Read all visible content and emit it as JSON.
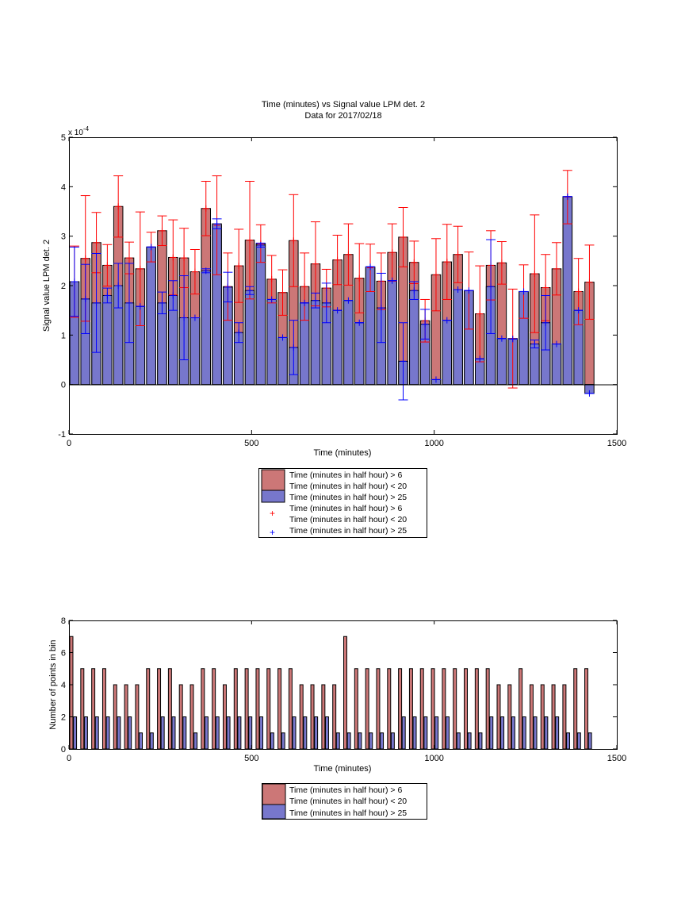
{
  "chart_data": [
    {
      "type": "bar",
      "title": [
        "Time (minutes) vs Signal value LPM det. 2",
        "Data for 2017/02/18"
      ],
      "xlabel": "Time (minutes)",
      "ylabel": "Signal value LPM det. 2",
      "exponent_label": "x 10",
      "exponent_power": "-4",
      "xlim": [
        0,
        1500
      ],
      "ylim": [
        -1,
        5
      ],
      "xticks": [
        0,
        500,
        1000,
        1500
      ],
      "yticks": [
        -1,
        0,
        1,
        2,
        3,
        4,
        5
      ],
      "grid": false,
      "legend": {
        "placement": "below",
        "entries": [
          {
            "kind": "bar",
            "color": "#cc7777",
            "lines": [
              "Time (minutes in half hour) > 6",
              "Time (minutes in half hour) < 20"
            ]
          },
          {
            "kind": "bar",
            "color": "#7777cc",
            "lines": [
              "Time (minutes in half hour) > 25"
            ]
          },
          {
            "kind": "marker",
            "color": "#ff0000",
            "lines": [
              "Time (minutes in half hour) > 6",
              "Time (minutes in half hour) < 20"
            ]
          },
          {
            "kind": "marker",
            "color": "#0000ff",
            "lines": [
              "Time (minutes in half hour) > 25"
            ]
          }
        ]
      },
      "series": [
        {
          "color": "#cc7777",
          "errcolor": "#ff0000",
          "x": [
            15,
            45,
            75,
            105,
            135,
            165,
            195,
            225,
            255,
            285,
            315,
            345,
            375,
            405,
            435,
            465,
            495,
            525,
            555,
            585,
            615,
            645,
            675,
            705,
            735,
            765,
            795,
            825,
            855,
            885,
            915,
            945,
            975,
            1005,
            1035,
            1065,
            1095,
            1125,
            1155,
            1185,
            1215,
            1245,
            1275,
            1305,
            1335,
            1365,
            1395,
            1425
          ],
          "values": [
            2.08,
            2.55,
            2.87,
            2.41,
            3.6,
            2.56,
            2.34,
            2.78,
            3.11,
            2.57,
            2.56,
            2.28,
            3.56,
            3.22,
            1.98,
            2.4,
            2.92,
            2.85,
            2.13,
            1.86,
            2.91,
            1.98,
            2.44,
            1.95,
            2.52,
            2.63,
            2.15,
            2.36,
            2.09,
            2.67,
            2.98,
            2.47,
            1.29,
            2.22,
            2.48,
            2.63,
            1.9,
            1.43,
            2.41,
            2.46,
            0.93,
            1.88,
            2.24,
            1.96,
            2.34,
            3.79,
            1.88,
            2.07
          ],
          "errors": [
            0.72,
            1.27,
            0.61,
            0.42,
            0.62,
            0.32,
            1.15,
            0.3,
            0.3,
            0.76,
            0.6,
            0.45,
            0.55,
            1.0,
            0.68,
            0.74,
            1.19,
            0.38,
            0.48,
            0.46,
            0.93,
            0.68,
            0.85,
            0.38,
            0.5,
            0.62,
            0.7,
            0.48,
            0.57,
            0.58,
            0.6,
            0.43,
            0.43,
            0.73,
            0.76,
            0.57,
            0.78,
            0.97,
            0.7,
            0.43,
            1.0,
            0.54,
            1.19,
            0.67,
            0.53,
            0.54,
            0.67,
            0.75
          ]
        },
        {
          "color": "#7777cc",
          "errcolor": "#0000ff",
          "x": [
            15,
            45,
            75,
            105,
            135,
            165,
            195,
            225,
            255,
            285,
            315,
            345,
            375,
            405,
            435,
            465,
            495,
            525,
            555,
            585,
            615,
            645,
            675,
            705,
            735,
            765,
            795,
            825,
            855,
            885,
            915,
            945,
            975,
            1005,
            1035,
            1065,
            1095,
            1125,
            1155,
            1185,
            1215,
            1245,
            1275,
            1305,
            1335,
            1365,
            1395,
            1425
          ],
          "values": [
            2.08,
            1.73,
            1.65,
            1.8,
            2.0,
            1.65,
            1.58,
            2.78,
            1.65,
            1.8,
            1.35,
            1.35,
            2.3,
            3.25,
            1.97,
            1.05,
            1.9,
            2.82,
            1.72,
            0.95,
            0.75,
            1.65,
            1.7,
            1.65,
            1.5,
            1.7,
            1.25,
            2.38,
            1.55,
            2.1,
            0.47,
            1.9,
            1.22,
            0.1,
            1.3,
            1.92,
            1.9,
            0.52,
            1.98,
            0.93,
            0.92,
            1.88,
            0.82,
            1.25,
            0.82,
            3.8,
            1.5,
            -0.18
          ],
          "errors": [
            0.7,
            0.7,
            1.0,
            0.15,
            0.45,
            0.8,
            0.0,
            0.0,
            0.22,
            0.3,
            0.85,
            0.0,
            0.04,
            0.1,
            0.3,
            0.2,
            0.08,
            0.04,
            0.0,
            0.0,
            0.55,
            0.0,
            0.15,
            0.4,
            0.0,
            0.0,
            0.0,
            0.0,
            0.7,
            0.0,
            0.78,
            0.18,
            0.3,
            0.0,
            0.0,
            0.0,
            0.0,
            0.0,
            0.95,
            0.0,
            0.0,
            0.0,
            0.08,
            0.55,
            0.0,
            0.0,
            0.0,
            0.0
          ]
        }
      ]
    },
    {
      "type": "bar",
      "xlabel": "Time (minutes)",
      "ylabel": "Number of points in bin",
      "xlim": [
        0,
        1500
      ],
      "ylim": [
        0,
        8
      ],
      "xticks": [
        0,
        500,
        1000,
        1500
      ],
      "yticks": [
        0,
        2,
        4,
        6,
        8
      ],
      "grid": false,
      "legend": {
        "placement": "below",
        "entries": [
          {
            "kind": "bar",
            "color": "#cc7777",
            "lines": [
              "Time (minutes in half hour) > 6",
              "Time (minutes in half hour) < 20"
            ]
          },
          {
            "kind": "bar",
            "color": "#7777cc",
            "lines": [
              "Time (minutes in half hour) > 25"
            ]
          }
        ]
      },
      "series": [
        {
          "color": "#cc7777",
          "x": [
            6.5,
            36.5,
            66.5,
            96.5,
            126.5,
            156.5,
            186.5,
            216.5,
            246.5,
            276.5,
            306.5,
            336.5,
            366.5,
            396.5,
            426.5,
            456.5,
            486.5,
            516.5,
            546.5,
            576.5,
            606.5,
            636.5,
            666.5,
            696.5,
            726.5,
            756.5,
            786.5,
            816.5,
            846.5,
            876.5,
            906.5,
            936.5,
            966.5,
            996.5,
            1026.5,
            1056.5,
            1086.5,
            1116.5,
            1146.5,
            1176.5,
            1206.5,
            1236.5,
            1266.5,
            1296.5,
            1326.5,
            1356.5,
            1386.5,
            1416.5
          ],
          "values": [
            7,
            5,
            5,
            5,
            4,
            4,
            4,
            5,
            5,
            5,
            4,
            4,
            5,
            5,
            4,
            5,
            5,
            5,
            5,
            5,
            5,
            4,
            4,
            4,
            4,
            7,
            5,
            5,
            5,
            5,
            5,
            5,
            5,
            5,
            5,
            5,
            5,
            5,
            5,
            4,
            4,
            5,
            4,
            4,
            4,
            4,
            5,
            5
          ]
        },
        {
          "color": "#7777cc",
          "x": [
            16.5,
            46.5,
            76.5,
            106.5,
            136.5,
            166.5,
            196.5,
            226.5,
            256.5,
            286.5,
            316.5,
            346.5,
            376.5,
            406.5,
            436.5,
            466.5,
            496.5,
            526.5,
            556.5,
            586.5,
            616.5,
            646.5,
            676.5,
            706.5,
            736.5,
            766.5,
            796.5,
            826.5,
            856.5,
            886.5,
            916.5,
            946.5,
            976.5,
            1006.5,
            1036.5,
            1066.5,
            1096.5,
            1126.5,
            1156.5,
            1186.5,
            1216.5,
            1246.5,
            1276.5,
            1306.5,
            1336.5,
            1366.5,
            1396.5,
            1426.5
          ],
          "values": [
            2,
            2,
            2,
            2,
            2,
            2,
            1,
            1,
            2,
            2,
            2,
            1,
            2,
            2,
            2,
            2,
            2,
            2,
            1,
            1,
            2,
            2,
            2,
            2,
            1,
            1,
            1,
            1,
            1,
            1,
            2,
            2,
            2,
            2,
            2,
            1,
            1,
            1,
            2,
            2,
            2,
            2,
            2,
            2,
            2,
            1,
            1,
            1
          ]
        }
      ]
    }
  ]
}
